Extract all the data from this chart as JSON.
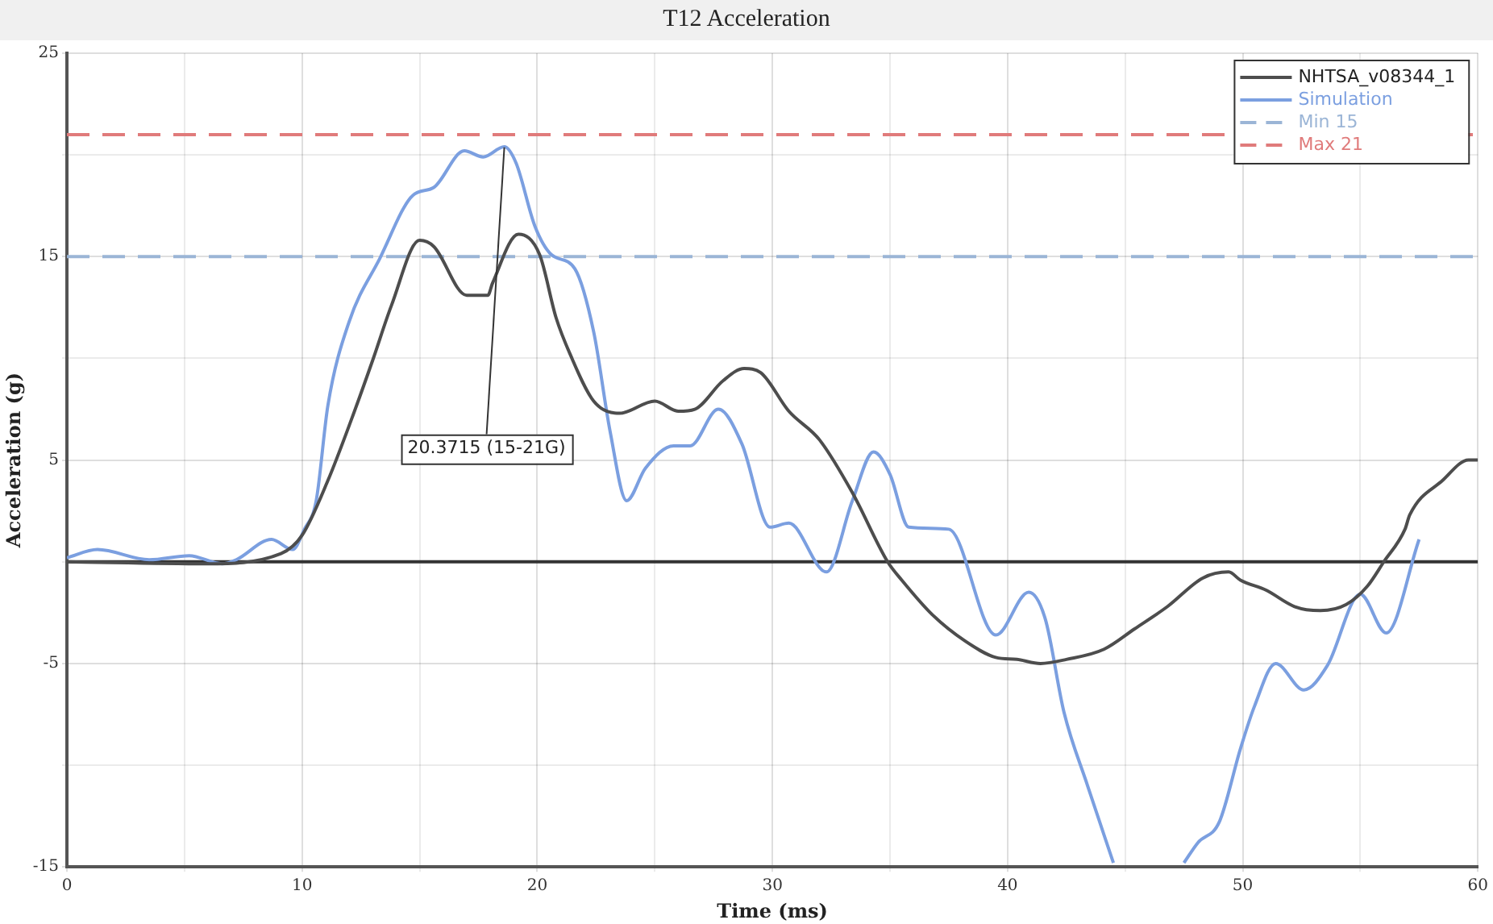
{
  "chart_data": {
    "type": "line",
    "title": "T12 Acceleration",
    "xlabel": "Time (ms)",
    "ylabel": "Acceleration (g)",
    "xlim": [
      0,
      60
    ],
    "xticks": [
      0,
      {
        "value": 5,
        "label": null
      },
      10,
      {
        "value": 15,
        "label": null
      },
      20,
      {
        "value": 25,
        "label": null
      },
      30,
      {
        "value": 35,
        "label": null
      },
      40,
      {
        "value": 45,
        "label": null
      },
      50,
      {
        "value": 55,
        "label": null
      },
      60
    ],
    "ylim": [
      -15,
      25
    ],
    "yticks": [
      -15,
      {
        "value": -10,
        "label": null
      },
      -5,
      {
        "value": 0,
        "label": null
      },
      5,
      {
        "value": 10,
        "label": null
      },
      15,
      {
        "value": 20,
        "label": null
      },
      25
    ],
    "grid": true,
    "legend": "top right",
    "marker": "none",
    "line_style": "solid",
    "series": [
      {
        "name": "NHTSA_v08344_1",
        "color": "#4d4d4d",
        "x": [
          0,
          5.9,
          9.1,
          10,
          11.1,
          12.1,
          13,
          13.8,
          15,
          15.6,
          17,
          17.9,
          18.1,
          19.2,
          20.1,
          20.8,
          21.4,
          22.4,
          23.5,
          25,
          26,
          26.7,
          27.9,
          28.8,
          29.5,
          30.7,
          32,
          33.4,
          34.9,
          35.5,
          36.8,
          38.2,
          39.5,
          40.4,
          41.4,
          42.5,
          44.1,
          45.4,
          46.8,
          48.3,
          49.4,
          49.9,
          51,
          52.2,
          53.3,
          54.4,
          55.3,
          56,
          56.9,
          57.1,
          58.5,
          59.6,
          60
        ],
        "values": [
          0,
          -0.1,
          0.4,
          1.3,
          4,
          7,
          9.9,
          12.6,
          15.8,
          15.5,
          13.1,
          13.1,
          13.7,
          16.1,
          15.1,
          12,
          10.2,
          7.9,
          7.3,
          7.9,
          7.4,
          7.5,
          8.9,
          9.5,
          9.3,
          7.4,
          6,
          3.4,
          0,
          -0.9,
          -2.6,
          -3.9,
          -4.7,
          -4.8,
          -5,
          -4.8,
          -4.3,
          -3.3,
          -2.2,
          -0.8,
          -0.5,
          -0.9,
          -1.4,
          -2.2,
          -2.4,
          -2.1,
          -1.2,
          0,
          1.6,
          2.3,
          4,
          5,
          5
        ]
      },
      {
        "name": "Simulation",
        "color": "#7b9fe0",
        "x": [
          0,
          1.3,
          3.5,
          5.2,
          6.6,
          7.2,
          8.7,
          9.6,
          10.1,
          10.6,
          11.1,
          12,
          13.3,
          14.7,
          15.6,
          16.9,
          17.7,
          18.6,
          19.1,
          19.9,
          20.6,
          21.6,
          22.4,
          23.1,
          23.8,
          24.6,
          25.8,
          26.5,
          27.7,
          28.7,
          29.9,
          30.7,
          32.3,
          33.4,
          34.3,
          35,
          35.8,
          37.5,
          39.5,
          40.9,
          41.6,
          42.4,
          43.4,
          44.5,
          46,
          47.5,
          48.1,
          49,
          49.9,
          50.5,
          51.4,
          52.6,
          53.6,
          55,
          56.1,
          57.5
        ],
        "values": [
          0.2,
          0.6,
          0.1,
          0.3,
          -0.1,
          0.1,
          1.1,
          0.6,
          1.6,
          3,
          7.7,
          11.8,
          14.9,
          18,
          18.4,
          20.2,
          19.9,
          20.4,
          19.6,
          16.5,
          15.1,
          14.4,
          11.3,
          6.4,
          3,
          4.6,
          5.7,
          5.7,
          7.5,
          5.8,
          1.7,
          1.9,
          -0.5,
          3,
          5.4,
          4.3,
          1.7,
          1.6,
          -3.6,
          -1.5,
          -2.8,
          -7.4,
          -11,
          -14.8,
          null,
          -14.8,
          -13.8,
          -12.8,
          -9.2,
          -7.1,
          -5,
          -6.3,
          -5.1,
          -1.6,
          -3.5,
          1.1
        ]
      }
    ],
    "ref_lines": [
      {
        "axis": "y",
        "value": 0,
        "color": "#333333",
        "line_style": "solid"
      },
      {
        "axis": "y",
        "value": 15,
        "label": "Min 15",
        "color": "#9bb5d6",
        "line_style": "dashed"
      },
      {
        "axis": "y",
        "value": 21,
        "label": "Max 21",
        "color": "#e07b7b",
        "line_style": "dashed"
      }
    ],
    "annotations": [
      {
        "text": "20.3715 (15-21G)",
        "x": 18.6,
        "y": 20.3715
      }
    ]
  }
}
